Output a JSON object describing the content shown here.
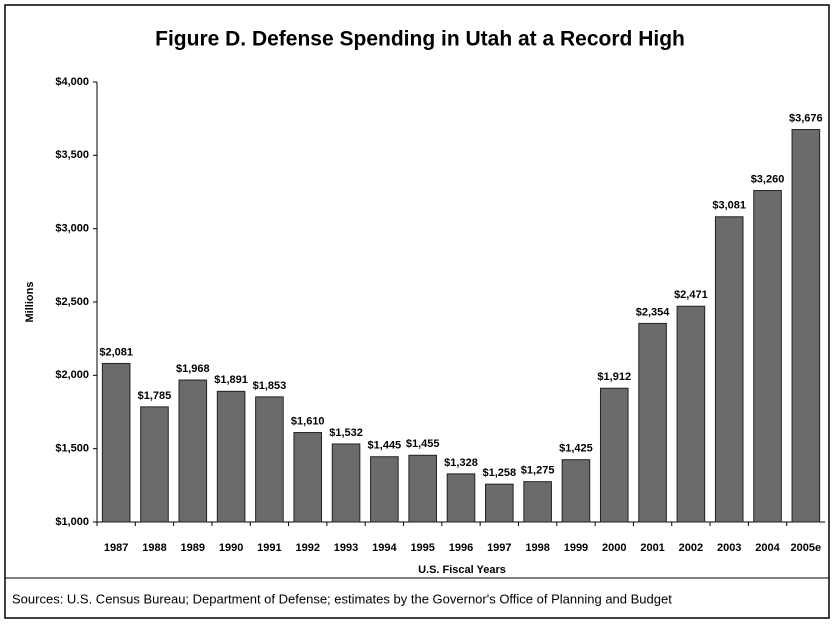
{
  "chart_data": {
    "type": "bar",
    "title": "Figure D. Defense Spending in Utah at a Record High",
    "y_axis_label": "Millions",
    "x_axis_label": "U.S. Fiscal Years",
    "source": "Sources: U.S. Census Bureau; Department of Defense; estimates by the Governor's Office of Planning and Budget",
    "categories": [
      "1987",
      "1988",
      "1989",
      "1990",
      "1991",
      "1992",
      "1993",
      "1994",
      "1995",
      "1996",
      "1997",
      "1998",
      "1999",
      "2000",
      "2001",
      "2002",
      "2003",
      "2004",
      "2005e"
    ],
    "values": [
      2081,
      1785,
      1968,
      1891,
      1853,
      1610,
      1532,
      1445,
      1455,
      1328,
      1258,
      1275,
      1425,
      1912,
      2354,
      2471,
      3081,
      3260,
      3676
    ],
    "value_labels": [
      "$2,081",
      "$1,785",
      "$1,968",
      "$1,891",
      "$1,853",
      "$1,610",
      "$1,532",
      "$1,445",
      "$1,455",
      "$1,328",
      "$1,258",
      "$1,275",
      "$1,425",
      "$1,912",
      "$2,354",
      "$2,471",
      "$3,081",
      "$3,260",
      "$3,676"
    ],
    "color": "#6b6b6b",
    "ylim": [
      1000,
      4000
    ],
    "yticks": [
      {
        "value": 1000,
        "label": "$1,000"
      },
      {
        "value": 1500,
        "label": "$1,500"
      },
      {
        "value": 2000,
        "label": "$2,000"
      },
      {
        "value": 2500,
        "label": "$2,500"
      },
      {
        "value": 3000,
        "label": "$3,000"
      },
      {
        "value": 3500,
        "label": "$3,500"
      },
      {
        "value": 4000,
        "label": "$4,000"
      }
    ],
    "grid": false
  }
}
